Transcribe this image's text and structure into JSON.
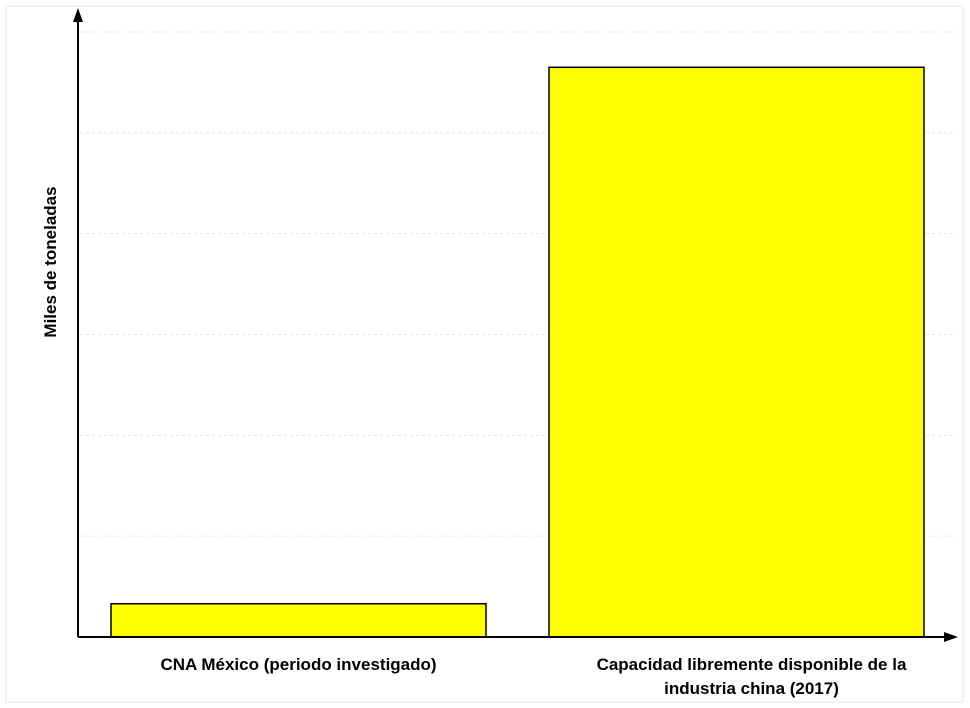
{
  "chart_data": {
    "type": "bar",
    "title": "",
    "xlabel": "",
    "ylabel": "Miles de toneladas",
    "categories": [
      [
        "CNA México (periodo investigado)"
      ],
      [
        "Capacidad libremente disponible de la",
        "industria china (2017)"
      ]
    ],
    "values": [
      1.65,
      28.25
    ],
    "ylim": [
      0,
      30
    ],
    "grid": true,
    "colors": {
      "bar_fill": "#ffff00",
      "bar_stroke": "#000000",
      "gridline": "#e6e6e6",
      "axis": "#000000",
      "frame": "#e6e6e6"
    }
  }
}
